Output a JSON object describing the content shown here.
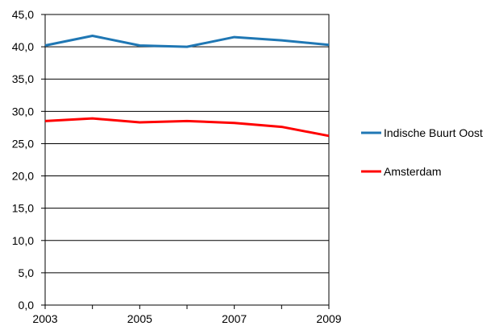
{
  "chart_data": {
    "type": "line",
    "x": [
      2003,
      2004,
      2005,
      2006,
      2007,
      2008,
      2009
    ],
    "xticks": [
      "2003",
      "2005",
      "2007",
      "2009"
    ],
    "yticks": [
      "0,0",
      "5,0",
      "10,0",
      "15,0",
      "20,0",
      "25,0",
      "30,0",
      "35,0",
      "40,0",
      "45,0"
    ],
    "ylim": [
      0,
      45
    ],
    "grid": true,
    "legend_position": "right",
    "series": [
      {
        "name": "Indische Buurt Oost",
        "color": "#1f77b4",
        "values": [
          40.2,
          41.7,
          40.2,
          40.0,
          41.5,
          41.0,
          40.3
        ]
      },
      {
        "name": "Amsterdam",
        "color": "#ff0000",
        "values": [
          28.5,
          28.9,
          28.3,
          28.5,
          28.2,
          27.6,
          26.2
        ]
      }
    ]
  }
}
